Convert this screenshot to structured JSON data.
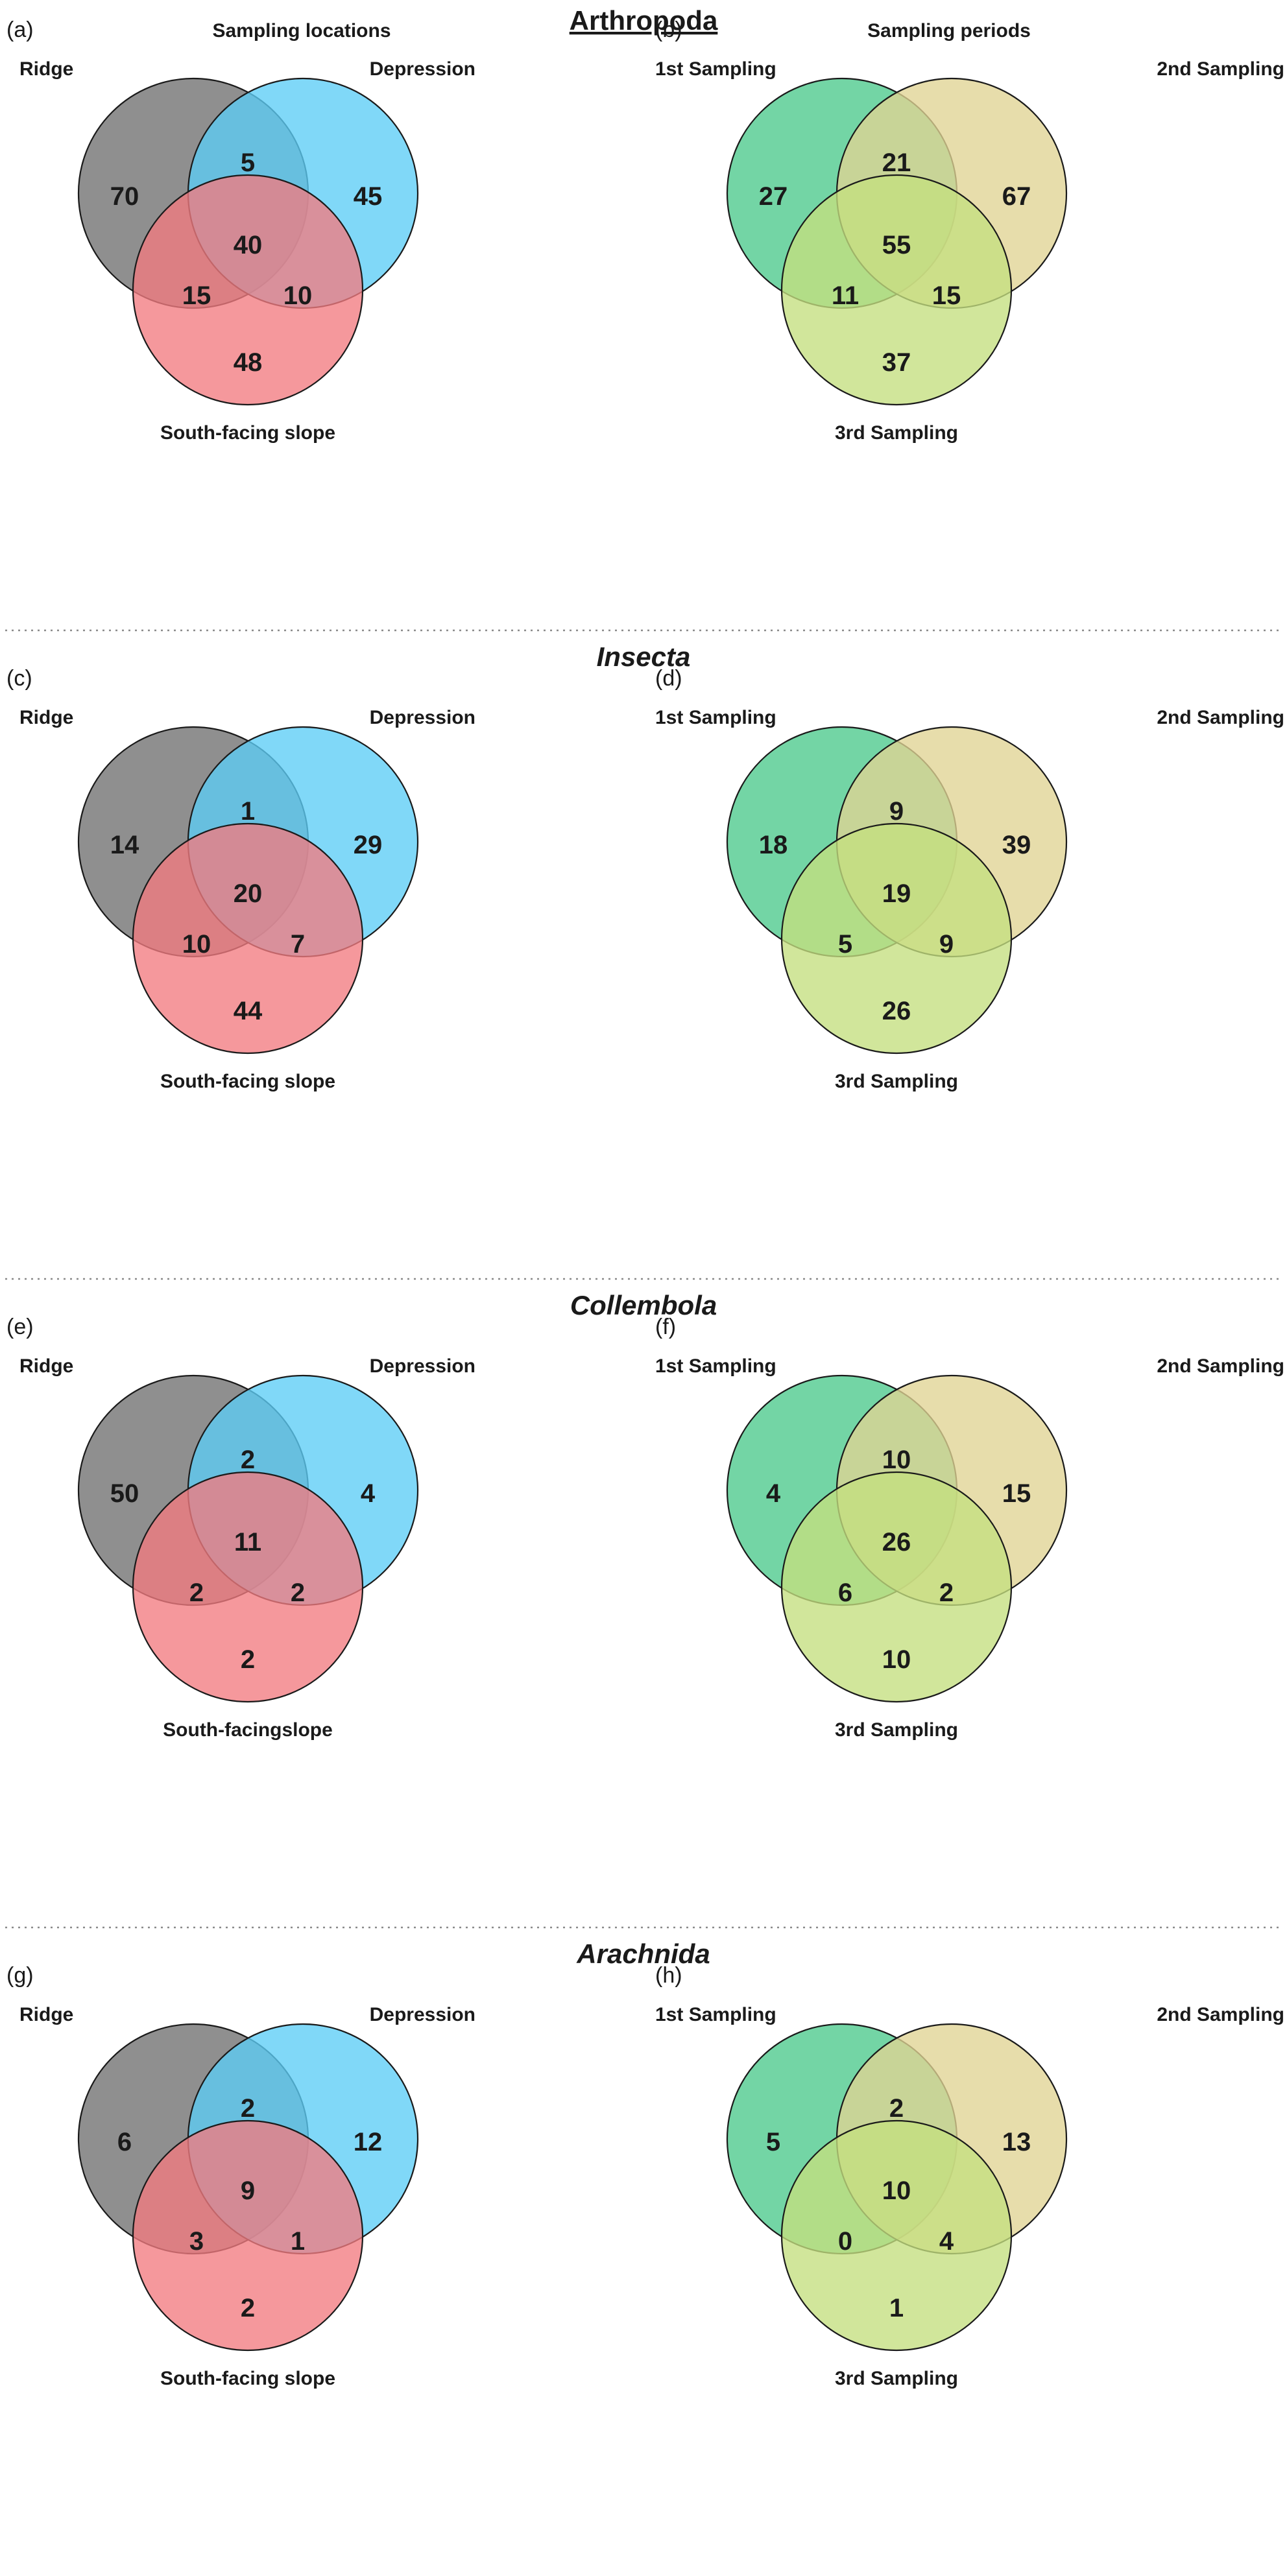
{
  "colors": {
    "ridge": "#6f6f6f",
    "depression": "#5ccdf6",
    "south_facing_slope": "#f27b80",
    "first_sampling": "#4cc98c",
    "second_sampling": "#e0d494",
    "third_sampling": "#c4df7f"
  },
  "sections": [
    {
      "title": "Arthropoda",
      "title_style": "underline",
      "panels": [
        {
          "label": "(a)",
          "heading": "Sampling locations",
          "type": "location",
          "sets": [
            "Ridge",
            "Depression",
            "South-facing slope"
          ],
          "counts": {
            "only_a": "70",
            "only_b": "45",
            "only_c": "48",
            "ab": "5",
            "ac": "15",
            "bc": "10",
            "abc": "40"
          }
        },
        {
          "label": "(b)",
          "heading": "Sampling periods",
          "type": "period",
          "sets": [
            "1st Sampling",
            "2nd Sampling",
            "3rd Sampling"
          ],
          "counts": {
            "only_a": "27",
            "only_b": "67",
            "only_c": "37",
            "ab": "21",
            "ac": "11",
            "bc": "15",
            "abc": "55"
          }
        }
      ]
    },
    {
      "title": "Insecta",
      "title_style": "italic",
      "panels": [
        {
          "label": "(c)",
          "heading": "",
          "type": "location",
          "sets": [
            "Ridge",
            "Depression",
            "South-facing slope"
          ],
          "counts": {
            "only_a": "14",
            "only_b": "29",
            "only_c": "44",
            "ab": "1",
            "ac": "10",
            "bc": "7",
            "abc": "20"
          }
        },
        {
          "label": "(d)",
          "heading": "",
          "type": "period",
          "sets": [
            "1st Sampling",
            "2nd Sampling",
            "3rd Sampling"
          ],
          "counts": {
            "only_a": "18",
            "only_b": "39",
            "only_c": "26",
            "ab": "9",
            "ac": "5",
            "bc": "9",
            "abc": "19"
          }
        }
      ]
    },
    {
      "title": "Collembola",
      "title_style": "italic",
      "panels": [
        {
          "label": "(e)",
          "heading": "",
          "type": "location",
          "sets": [
            "Ridge",
            "Depression",
            "South-facingslope"
          ],
          "counts": {
            "only_a": "50",
            "only_b": "4",
            "only_c": "2",
            "ab": "2",
            "ac": "2",
            "bc": "2",
            "abc": "11"
          }
        },
        {
          "label": "(f)",
          "heading": "",
          "type": "period",
          "sets": [
            "1st Sampling",
            "2nd Sampling",
            "3rd Sampling"
          ],
          "counts": {
            "only_a": "4",
            "only_b": "15",
            "only_c": "10",
            "ab": "10",
            "ac": "6",
            "bc": "2",
            "abc": "26"
          }
        }
      ]
    },
    {
      "title": "Arachnida",
      "title_style": "italic",
      "panels": [
        {
          "label": "(g)",
          "heading": "",
          "type": "location",
          "sets": [
            "Ridge",
            "Depression",
            "South-facing slope"
          ],
          "counts": {
            "only_a": "6",
            "only_b": "12",
            "only_c": "2",
            "ab": "2",
            "ac": "3",
            "bc": "1",
            "abc": "9"
          }
        },
        {
          "label": "(h)",
          "heading": "",
          "type": "period",
          "sets": [
            "1st Sampling",
            "2nd Sampling",
            "3rd Sampling"
          ],
          "counts": {
            "only_a": "5",
            "only_b": "13",
            "only_c": "1",
            "ab": "2",
            "ac": "0",
            "bc": "4",
            "abc": "10"
          }
        }
      ]
    }
  ]
}
